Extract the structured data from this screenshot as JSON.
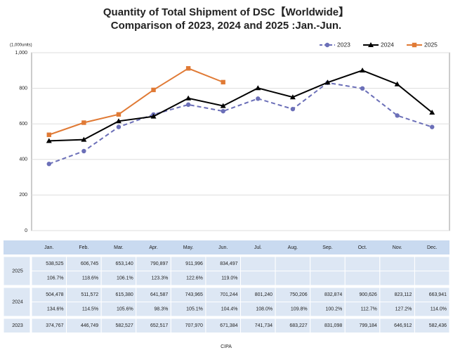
{
  "chart_data": {
    "type": "line",
    "title": "Quantity of Total Shipment of DSC【Worldwide】",
    "subtitle": "Comparison of 2023, 2024 and 2025 :Jan.-Jun.",
    "y_unit_label": "(1,000units)",
    "source": "CIPA",
    "categories": [
      "Jan.",
      "Feb.",
      "Mar.",
      "Apr.",
      "May.",
      "Jun.",
      "Jul.",
      "Aug.",
      "Sep.",
      "Oct.",
      "Nov.",
      "Dec."
    ],
    "ylim": [
      0,
      1000
    ],
    "yticks": [
      0,
      200,
      400,
      600,
      800,
      {
        "value": 1000,
        "label": "1,000"
      }
    ],
    "legend": "top-right",
    "series": [
      {
        "name": "2023",
        "color": "#6b6fb8",
        "dash": true,
        "marker": "circle",
        "values": [
          374.767,
          446.749,
          582.527,
          652.517,
          707.97,
          671.384,
          741.734,
          683.227,
          831.098,
          799.184,
          646.912,
          582.436
        ],
        "value_labels": [
          "374,767",
          "446,749",
          "582,527",
          "652,517",
          "707,970",
          "671,384",
          "741,734",
          "683,227",
          "831,098",
          "799,184",
          "646,912",
          "582,436"
        ]
      },
      {
        "name": "2024",
        "color": "#000000",
        "dash": false,
        "marker": "triangle",
        "values": [
          504.478,
          511.572,
          615.38,
          641.587,
          743.965,
          701.244,
          801.24,
          750.206,
          832.874,
          900.626,
          823.112,
          663.941
        ],
        "value_labels": [
          "504,478",
          "511,572",
          "615,380",
          "641,587",
          "743,965",
          "701,244",
          "801,240",
          "750,206",
          "832,874",
          "900,626",
          "823,112",
          "663,941"
        ],
        "yoy_labels": [
          "134.6%",
          "114.5%",
          "105.6%",
          "98.3%",
          "105.1%",
          "104.4%",
          "108.0%",
          "109.8%",
          "100.2%",
          "112.7%",
          "127.2%",
          "114.0%"
        ]
      },
      {
        "name": "2025",
        "color": "#e07a35",
        "dash": false,
        "marker": "square",
        "values": [
          538.525,
          606.745,
          653.14,
          790.897,
          911.996,
          834.497,
          null,
          null,
          null,
          null,
          null,
          null
        ],
        "value_labels": [
          "538,525",
          "606,745",
          "653,140",
          "790,897",
          "911,996",
          "834,497",
          null,
          null,
          null,
          null,
          null,
          null
        ],
        "yoy_labels": [
          "106.7%",
          "118.6%",
          "106.1%",
          "123.3%",
          "122.6%",
          "119.0%",
          null,
          null,
          null,
          null,
          null,
          null
        ]
      }
    ]
  }
}
